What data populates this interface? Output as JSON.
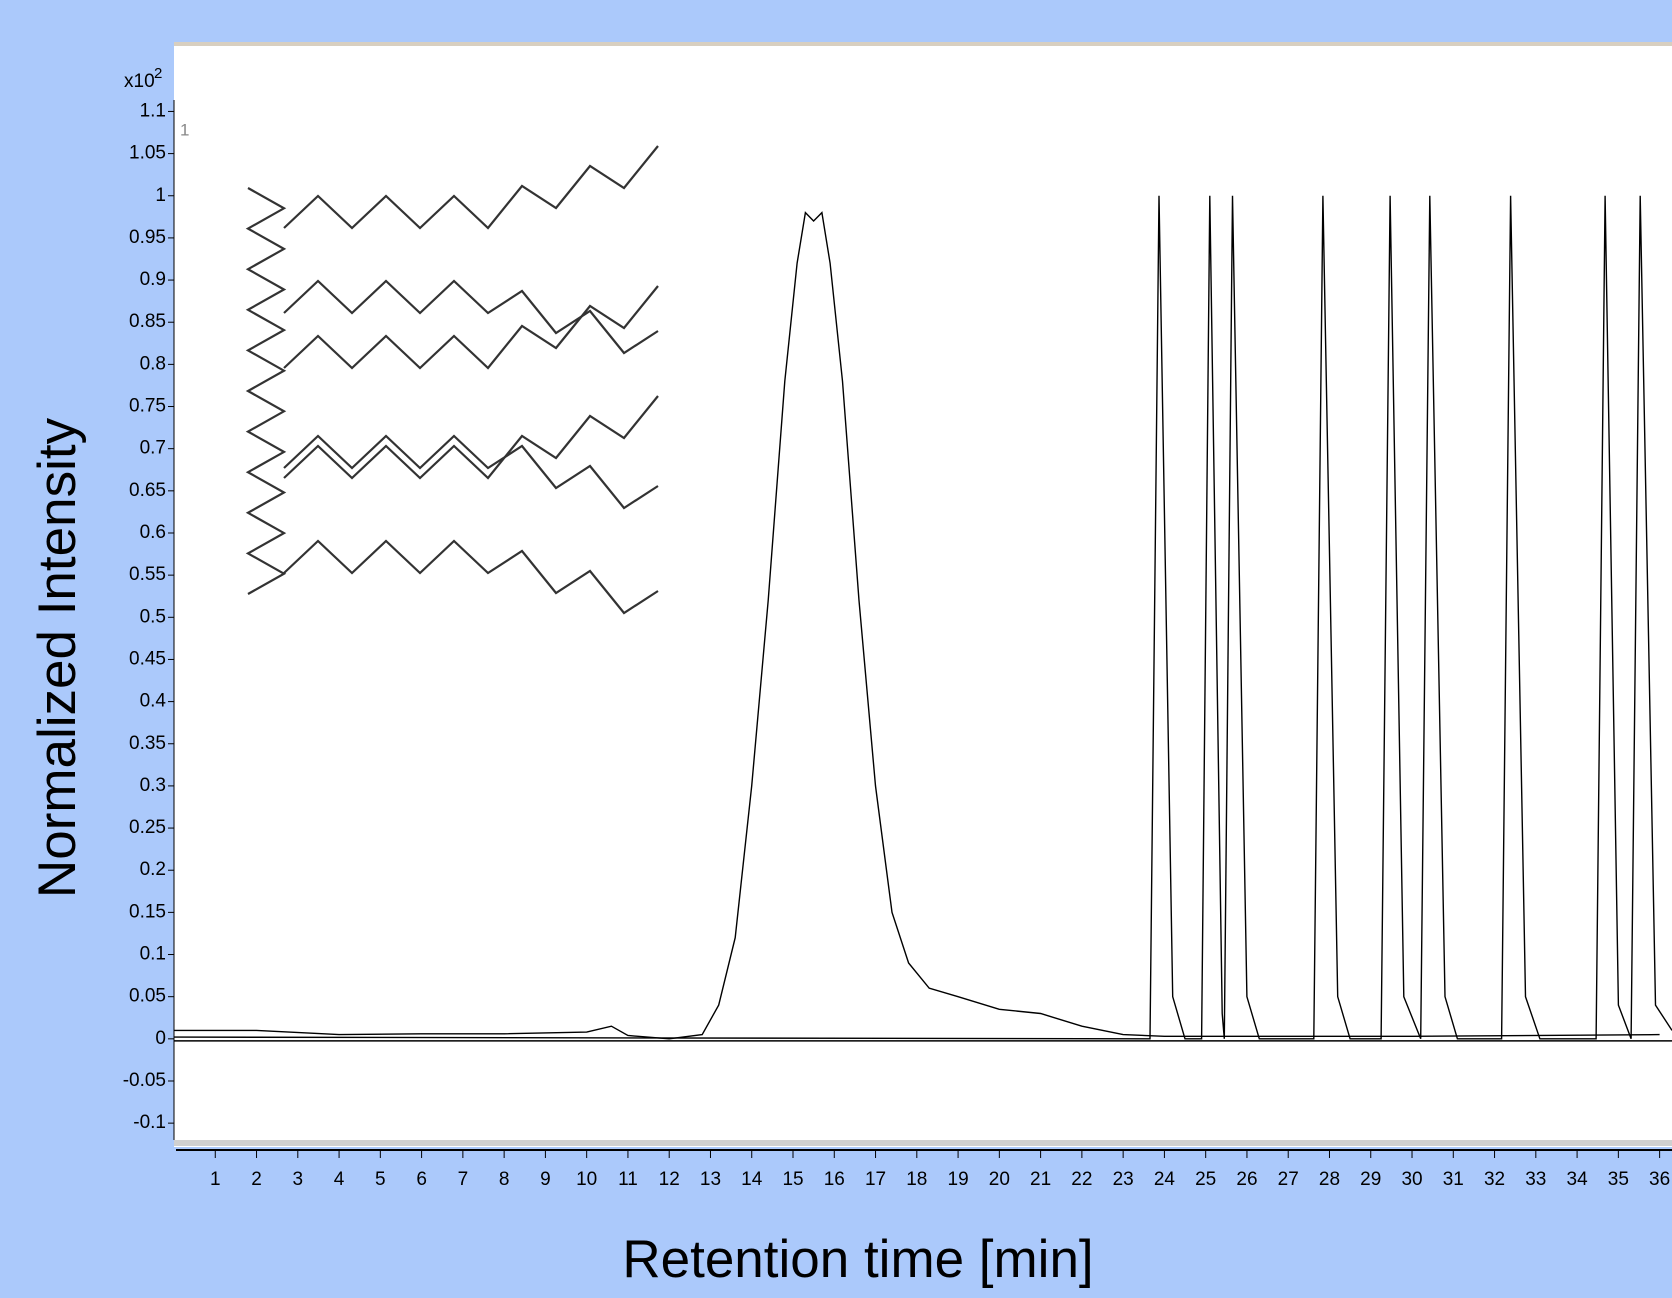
{
  "chart_data": {
    "type": "line",
    "x_label": "Retention time [min]",
    "y_label": "Normalized Intensity",
    "y_scale_label": "x10",
    "y_scale_exponent": "2",
    "annotation": "1",
    "xlim": [
      0,
      36.3
    ],
    "ylim": [
      -0.12,
      1.18
    ],
    "xticks": [
      1,
      2,
      3,
      4,
      5,
      6,
      7,
      8,
      9,
      10,
      11,
      12,
      13,
      14,
      15,
      16,
      17,
      18,
      19,
      20,
      21,
      22,
      23,
      24,
      25,
      26,
      27,
      28,
      29,
      30,
      31,
      32,
      33,
      34,
      35,
      36
    ],
    "yticks": [
      -0.1,
      -0.05,
      0,
      0.05,
      0.1,
      0.15,
      0.2,
      0.25,
      0.3,
      0.35,
      0.4,
      0.45,
      0.5,
      0.55,
      0.6,
      0.65,
      0.7,
      0.75,
      0.8,
      0.85,
      0.9,
      0.95,
      1,
      1.05,
      1.1
    ],
    "series": [
      {
        "color": "#000000",
        "x": [
          0,
          2,
          4,
          6,
          8,
          10,
          10.6,
          11,
          12,
          12.8,
          13.2,
          13.6,
          14,
          14.4,
          14.8,
          15.1,
          15.3,
          15.5,
          15.7,
          15.9,
          16.2,
          16.6,
          17,
          17.4,
          17.8,
          18.3,
          19,
          20,
          21,
          22,
          23,
          24,
          26,
          30,
          36
        ],
        "values": [
          0.01,
          0.01,
          0.005,
          0.006,
          0.006,
          0.008,
          0.015,
          0.004,
          0,
          0.005,
          0.04,
          0.12,
          0.3,
          0.52,
          0.78,
          0.92,
          0.98,
          0.97,
          0.98,
          0.92,
          0.78,
          0.52,
          0.3,
          0.15,
          0.09,
          0.06,
          0.05,
          0.035,
          0.03,
          0.015,
          0.005,
          0.003,
          0.003,
          0.003,
          0.005
        ]
      },
      {
        "color": "#000000",
        "x": [
          0,
          23.65,
          23.87,
          24.2,
          24.5,
          24.9,
          25.1,
          25.4,
          25.45,
          25.65,
          26,
          26.3,
          27.62,
          27.84,
          28.2,
          28.5,
          29.25,
          29.47,
          29.8,
          30.21,
          30.43,
          30.8,
          31.1,
          32.17,
          32.39,
          32.75,
          33.1,
          34.46,
          34.68,
          35.0,
          35.31,
          35.53,
          35.9,
          36.3
        ],
        "values": [
          0.002,
          0,
          1,
          0.05,
          0,
          0,
          1,
          0.03,
          0,
          1,
          0.05,
          0,
          0,
          1,
          0.05,
          0,
          0,
          1,
          0.05,
          0,
          1,
          0.05,
          0,
          0,
          1,
          0.05,
          0,
          0,
          1,
          0.04,
          0,
          1,
          0.04,
          0.01
        ]
      }
    ]
  }
}
